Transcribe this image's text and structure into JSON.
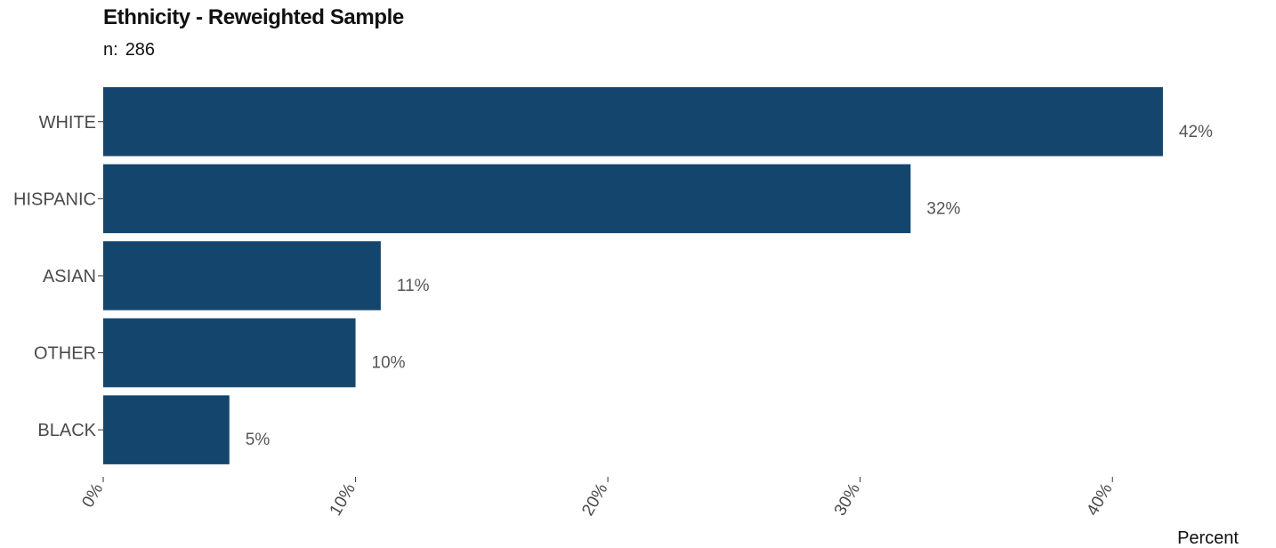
{
  "chart_data": {
    "type": "bar",
    "orientation": "horizontal",
    "title": "Ethnicity - Reweighted Sample",
    "subtitle": {
      "label": "n:",
      "value": "286"
    },
    "categories": [
      "WHITE",
      "HISPANIC",
      "ASIAN",
      "OTHER",
      "BLACK"
    ],
    "values": [
      42,
      32,
      11,
      10,
      5
    ],
    "value_labels": [
      "42%",
      "32%",
      "11%",
      "10%",
      "5%"
    ],
    "xlabel": "Percent",
    "ylabel": "",
    "xlim": [
      0,
      45
    ],
    "xticks": [
      0,
      10,
      20,
      30,
      40
    ],
    "xtick_labels": [
      "0%",
      "10%",
      "20%",
      "30%",
      "40%"
    ],
    "grid": false,
    "legend": "none",
    "colors": {
      "bar": "#14466d",
      "category_label": "#4a4a4a",
      "value_label": "#555555",
      "axis": "#333333",
      "title": "#111111"
    }
  }
}
